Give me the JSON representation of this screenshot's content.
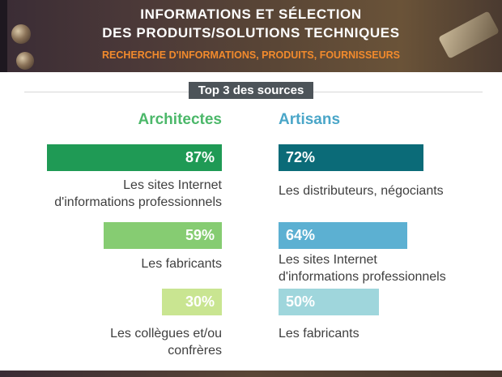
{
  "header": {
    "title_line1": "INFORMATIONS ET SÉLECTION",
    "title_line2": "DES PRODUITS/SOLUTIONS TECHNIQUES",
    "subtitle": "RECHERCHE D'INFORMATIONS, PRODUITS, FOURNISSEURS"
  },
  "chip": "Top 3 des sources",
  "colors": {
    "architectes": [
      "#1f9a55",
      "#86cc72",
      "#c9e591"
    ],
    "artisans": [
      "#0b6b78",
      "#5cb0d2",
      "#9fd6dc"
    ],
    "architectes_heading": "#4cb86a",
    "artisans_heading": "#4aa6c8",
    "chip_bg": "#4d5459",
    "subtitle": "#f28a2c"
  },
  "chart_data": {
    "type": "bar",
    "title": "Top 3 des sources",
    "unit": "%",
    "groups": [
      {
        "name": "Architectes",
        "items": [
          {
            "value": 87,
            "label": "87%",
            "text_lines": [
              "Les sites Internet",
              "d'informations professionnels"
            ]
          },
          {
            "value": 59,
            "label": "59%",
            "text_lines": [
              "Les fabricants"
            ]
          },
          {
            "value": 30,
            "label": "30%",
            "text_lines": [
              "Les collègues et/ou",
              "confrères"
            ]
          }
        ]
      },
      {
        "name": "Artisans",
        "items": [
          {
            "value": 72,
            "label": "72%",
            "text_lines": [
              "Les distributeurs, négociants"
            ]
          },
          {
            "value": 64,
            "label": "64%",
            "text_lines": [
              "Les sites Internet",
              "d'informations professionnels"
            ]
          },
          {
            "value": 50,
            "label": "50%",
            "text_lines": [
              "Les fabricants"
            ]
          }
        ]
      }
    ]
  }
}
